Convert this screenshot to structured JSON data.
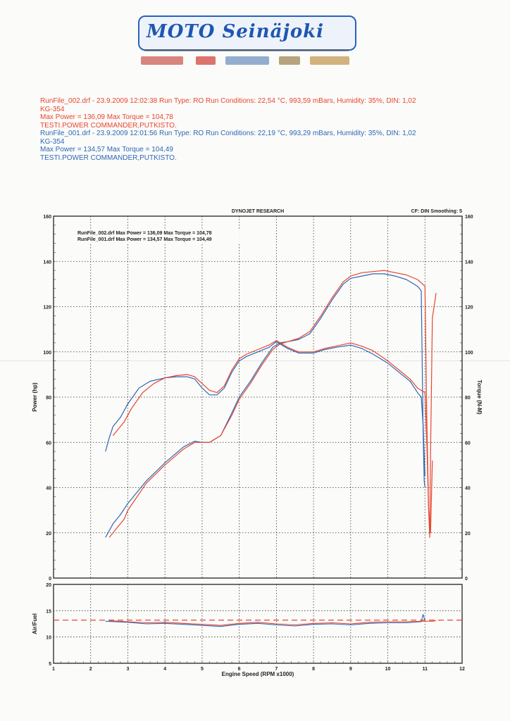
{
  "header": {
    "logo_text": "MOTO Seinäjoki",
    "runs": [
      {
        "color": "#e8452f",
        "line1": "RunFile_002.drf - 23.9.2009 12:02:38  Run Type: RO  Run Conditions: 22,54 °C, 993,59 mBars,  Humidity:  35%, DIN: 1,02",
        "line2": "KG-354",
        "line3": "Max Power = 136,09  Max Torque = 104,78",
        "line4": "TESTI.POWER COMMANDER,PUTKISTO."
      },
      {
        "color": "#2c67b7",
        "line1": "RunFile_001.drf - 23.9.2009 12:01:56  Run Type: RO  Run Conditions: 22,19 °C, 993,29 mBars,  Humidity:  35%, DIN: 1,02",
        "line2": "KG-354",
        "line3": "Max Power = 134,57  Max Torque = 104,49",
        "line4": "TESTI.POWER COMMANDER,PUTKISTO."
      }
    ]
  },
  "chart_data": [
    {
      "type": "line",
      "title": "DYNOJET RESEARCH",
      "corner_note": "CF: DIN  Smoothing: 5",
      "xlabel": "Engine Speed (RPM x1000)",
      "ylabel": "Power (hp)",
      "y2label": "Torque (N-M)",
      "xlim": [
        1,
        12
      ],
      "ylim": [
        0,
        160
      ],
      "y2lim": [
        0,
        160
      ],
      "x_ticks": [
        "1",
        "2",
        "3",
        "4",
        "5",
        "6",
        "7",
        "8",
        "9",
        "10",
        "11",
        "12"
      ],
      "y_ticks": [
        "0",
        "20",
        "40",
        "60",
        "80",
        "100",
        "120",
        "140",
        "160"
      ],
      "y2_ticks": [
        "0",
        "20",
        "40",
        "60",
        "80",
        "100",
        "120",
        "140",
        "160"
      ],
      "grid": true,
      "legend": [
        "RunFile_002.drf Max Power = 136,09    Max Torque = 104,78",
        "RunFile_001.drf Max Power = 134,57    Max Torque = 104,49"
      ],
      "series": [
        {
          "color": "#2c67b7",
          "axis": "left",
          "x": [
            2.4,
            2.6,
            2.8,
            3,
            3.5,
            4,
            4.5,
            4.8,
            5,
            5.2,
            5.5,
            5.8,
            6,
            6.3,
            6.6,
            6.9,
            7.1,
            7.3,
            7.6,
            7.9,
            8.2,
            8.5,
            8.8,
            9,
            9.3,
            9.6,
            9.9,
            10.2,
            10.5,
            10.8,
            10.9,
            10.95,
            10.98,
            11.0
          ],
          "values": [
            18,
            24,
            28,
            33,
            43,
            51,
            58,
            60.5,
            60,
            60,
            63,
            73,
            80,
            87,
            95,
            102,
            104,
            104.5,
            105.5,
            108,
            115,
            123,
            130,
            132.5,
            133.5,
            134.5,
            134.5,
            133.5,
            132,
            129,
            127,
            66,
            43,
            40
          ]
        },
        {
          "color": "#e8452f",
          "axis": "left",
          "x": [
            2.5,
            2.7,
            2.9,
            3,
            3.5,
            4,
            4.5,
            4.8,
            5,
            5.2,
            5.5,
            5.8,
            6,
            6.3,
            6.6,
            6.9,
            7.1,
            7.3,
            7.6,
            7.9,
            8.2,
            8.5,
            8.8,
            9,
            9.3,
            9.6,
            9.9,
            10.2,
            10.5,
            10.8,
            11.0,
            11.05,
            11.1,
            11.13,
            11.15,
            11.2,
            11.3
          ],
          "values": [
            18,
            22,
            26,
            30,
            42,
            50,
            57,
            60,
            60,
            60,
            63,
            72,
            79,
            86,
            94,
            101,
            103.5,
            104.5,
            106,
            109,
            116,
            124,
            131,
            133.5,
            135,
            135.5,
            136,
            135,
            134,
            132,
            129,
            70,
            30,
            18,
            55,
            115,
            126
          ]
        },
        {
          "color": "#2c67b7",
          "axis": "right",
          "x": [
            2.4,
            2.5,
            2.6,
            2.8,
            3,
            3.3,
            3.6,
            4,
            4.3,
            4.6,
            4.8,
            5,
            5.2,
            5.4,
            5.6,
            5.8,
            6,
            6.2,
            6.5,
            6.8,
            7,
            7.3,
            7.6,
            8,
            8.3,
            8.6,
            9,
            9.3,
            9.6,
            10,
            10.3,
            10.6,
            10.8,
            10.9,
            10.95,
            11.0
          ],
          "values": [
            56,
            62,
            67,
            71,
            77,
            84,
            87,
            88.5,
            89,
            89,
            88,
            84,
            81,
            81,
            84,
            91,
            96,
            98,
            100,
            102,
            104.5,
            101.5,
            99.5,
            99.5,
            101,
            102,
            103,
            101.5,
            99,
            95,
            91,
            87,
            82,
            80,
            68,
            45
          ]
        },
        {
          "color": "#e8452f",
          "axis": "right",
          "x": [
            2.6,
            2.7,
            2.9,
            3.1,
            3.4,
            3.7,
            4,
            4.3,
            4.6,
            4.8,
            5,
            5.2,
            5.4,
            5.6,
            5.8,
            6,
            6.2,
            6.5,
            6.8,
            7,
            7.3,
            7.6,
            8,
            8.3,
            8.6,
            9,
            9.3,
            9.6,
            10,
            10.3,
            10.6,
            10.8,
            11.0,
            11.05,
            11.1,
            11.15,
            11.2
          ],
          "values": [
            63,
            65,
            69,
            75,
            82,
            86,
            88.5,
            89.5,
            90,
            89,
            86,
            83,
            82,
            85,
            92,
            97,
            99,
            101,
            103,
            105,
            102,
            100,
            100,
            101.5,
            102.5,
            104,
            102.5,
            100.5,
            96,
            92,
            88,
            84,
            82,
            60,
            30,
            20,
            52
          ]
        }
      ]
    },
    {
      "type": "line",
      "ylabel": "Air/Fuel",
      "xlabel": "Engine Speed (RPM x1000)",
      "xlim": [
        1,
        12
      ],
      "ylim": [
        5,
        20
      ],
      "y_ticks": [
        "5",
        "10",
        "15",
        "20"
      ],
      "x_ticks": [
        "1",
        "2",
        "3",
        "4",
        "5",
        "6",
        "7",
        "8",
        "9",
        "10",
        "11",
        "12"
      ],
      "reference_line": 13.2,
      "grid": true,
      "series": [
        {
          "color": "#2c67b7",
          "x": [
            2.4,
            3,
            3.5,
            4,
            4.5,
            5,
            5.5,
            6,
            6.5,
            7,
            7.5,
            8,
            8.5,
            9,
            9.5,
            10,
            10.5,
            10.9,
            10.95,
            11.0
          ],
          "values": [
            13,
            12.8,
            12.5,
            12.6,
            12.4,
            12.2,
            12,
            12.4,
            12.6,
            12.3,
            12.1,
            12.4,
            12.5,
            12.3,
            12.6,
            12.7,
            12.7,
            12.9,
            14.3,
            13.1
          ]
        },
        {
          "color": "#e8452f",
          "x": [
            2.5,
            3,
            3.5,
            4,
            4.5,
            5,
            5.5,
            6,
            6.5,
            7,
            7.5,
            8,
            8.5,
            9,
            9.5,
            10,
            10.5,
            11.0,
            11.2,
            11.3
          ],
          "values": [
            13.1,
            12.9,
            12.7,
            12.8,
            12.6,
            12.4,
            12.2,
            12.6,
            12.8,
            12.5,
            12.3,
            12.6,
            12.7,
            12.5,
            12.8,
            12.9,
            12.9,
            13.0,
            13.0,
            13.1
          ]
        }
      ]
    }
  ]
}
